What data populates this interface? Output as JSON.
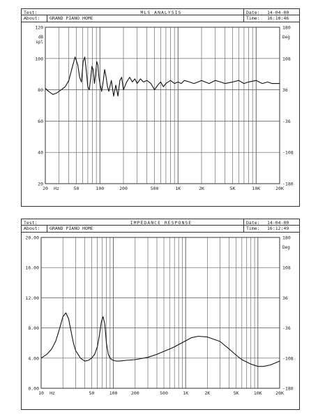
{
  "panel1": {
    "header": {
      "test_label": "Test:",
      "about_label": "About:",
      "about_value": "GRAND PIANO HOME",
      "title": "MLS ANALYSIS",
      "date_label": "Date:",
      "date_value": "14-04-00",
      "time_label": "Time:",
      "time_value": "16:10:46"
    }
  },
  "panel2": {
    "header": {
      "test_label": "Test:",
      "about_label": "About:",
      "about_value": "GRAND PIANO HOME",
      "title": "IMPEDANCE RESPONSE",
      "date_label": "Date:",
      "date_value": "14-04-00",
      "time_label": "Time:",
      "time_value": "16:12:49"
    }
  },
  "chart_data": [
    {
      "type": "line",
      "title": "MLS ANALYSIS",
      "xscale": "log",
      "xlim": [
        20,
        20000
      ],
      "xticks": [
        20,
        50,
        100,
        200,
        500,
        1000,
        2000,
        5000,
        10000,
        20000
      ],
      "xtick_labels": [
        "20",
        "50",
        "100",
        "200",
        "500",
        "1K",
        "2K",
        "5K",
        "10K",
        "20K"
      ],
      "x_unit_label": "Hz",
      "ylim": [
        20,
        120
      ],
      "yticks": [
        20,
        40,
        60,
        80,
        100,
        120
      ],
      "ytick_labels": [
        "20",
        "40",
        "60",
        "80",
        "100",
        "120"
      ],
      "ylabel": "dB spl",
      "y2lim": [
        -180,
        180
      ],
      "y2ticks": [
        -180,
        -108,
        -36,
        36,
        108,
        180
      ],
      "y2tick_labels": [
        "-180",
        "-108",
        "-36",
        "36",
        "108",
        "180"
      ],
      "y2label": "Deg",
      "grid": true,
      "series": [
        {
          "x": [
            20,
            22,
            25,
            28,
            32,
            36,
            40,
            44,
            48,
            52,
            55,
            58,
            61,
            64,
            67,
            70,
            73,
            76,
            79,
            82,
            85,
            88,
            91,
            94,
            97,
            100,
            105,
            110,
            115,
            120,
            125,
            130,
            140,
            150,
            160,
            170,
            180,
            190,
            200,
            220,
            240,
            260,
            280,
            300,
            330,
            360,
            400,
            450,
            500,
            550,
            600,
            650,
            700,
            800,
            900,
            1000,
            1100,
            1200,
            1400,
            1600,
            1800,
            2000,
            2500,
            3000,
            3500,
            4000,
            5000,
            6000,
            7000,
            8000,
            10000,
            12000,
            14000,
            16000,
            20000
          ],
          "y": [
            81,
            79,
            77,
            78,
            80,
            82,
            86,
            94,
            101,
            96,
            88,
            85,
            98,
            101,
            92,
            82,
            80,
            87,
            95,
            93,
            84,
            90,
            98,
            96,
            88,
            84,
            79,
            85,
            93,
            88,
            82,
            79,
            86,
            76,
            83,
            76,
            86,
            88,
            80,
            85,
            88,
            85,
            87,
            84,
            87,
            85,
            86,
            84,
            80,
            83,
            85,
            82,
            84,
            86,
            84,
            85,
            84,
            86,
            85,
            84,
            85,
            86,
            84,
            86,
            85,
            84,
            85,
            86,
            84,
            85,
            86,
            84,
            85,
            84,
            84
          ]
        }
      ]
    },
    {
      "type": "line",
      "title": "IMPEDANCE RESPONSE",
      "xscale": "log",
      "xlim": [
        10,
        20000
      ],
      "xticks": [
        10,
        50,
        100,
        200,
        500,
        1000,
        2000,
        5000,
        10000,
        20000
      ],
      "xtick_labels": [
        "10",
        "50",
        "100",
        "200",
        "500",
        "1K",
        "2K",
        "5K",
        "10K",
        "20K"
      ],
      "x_unit_label": "Hz",
      "ylim": [
        0,
        20
      ],
      "yticks": [
        0,
        4,
        8,
        12,
        16,
        20
      ],
      "ytick_labels": [
        "0.00",
        "4.00",
        "8.00",
        "12.00",
        "16.00",
        "20.00"
      ],
      "y2lim": [
        -180,
        180
      ],
      "y2ticks": [
        -180,
        -108,
        -36,
        36,
        108,
        180
      ],
      "y2tick_labels": [
        "-180",
        "-108",
        "-36",
        "36",
        "108",
        "180"
      ],
      "y2label": "Deg",
      "grid": true,
      "series": [
        {
          "x": [
            10,
            12,
            14,
            16,
            18,
            20,
            22,
            24,
            26,
            28,
            30,
            35,
            40,
            45,
            50,
            55,
            60,
            64,
            68,
            72,
            76,
            80,
            85,
            90,
            95,
            100,
            110,
            120,
            150,
            200,
            300,
            400,
            500,
            600,
            700,
            800,
            1000,
            1200,
            1500,
            2000,
            3000,
            4000,
            5000,
            6000,
            8000,
            10000,
            12000,
            15000,
            20000
          ],
          "y": [
            4.0,
            4.5,
            5.2,
            6.3,
            7.9,
            9.5,
            10.0,
            9.2,
            7.5,
            6.0,
            5.0,
            4.0,
            3.6,
            3.7,
            4.0,
            4.5,
            5.5,
            7.0,
            8.8,
            9.5,
            8.5,
            6.0,
            4.5,
            4.0,
            3.8,
            3.7,
            3.6,
            3.6,
            3.7,
            3.8,
            4.1,
            4.5,
            4.9,
            5.2,
            5.5,
            5.8,
            6.3,
            6.7,
            6.9,
            6.8,
            6.2,
            5.2,
            4.4,
            3.8,
            3.2,
            2.9,
            2.9,
            3.1,
            3.6
          ]
        }
      ]
    }
  ]
}
